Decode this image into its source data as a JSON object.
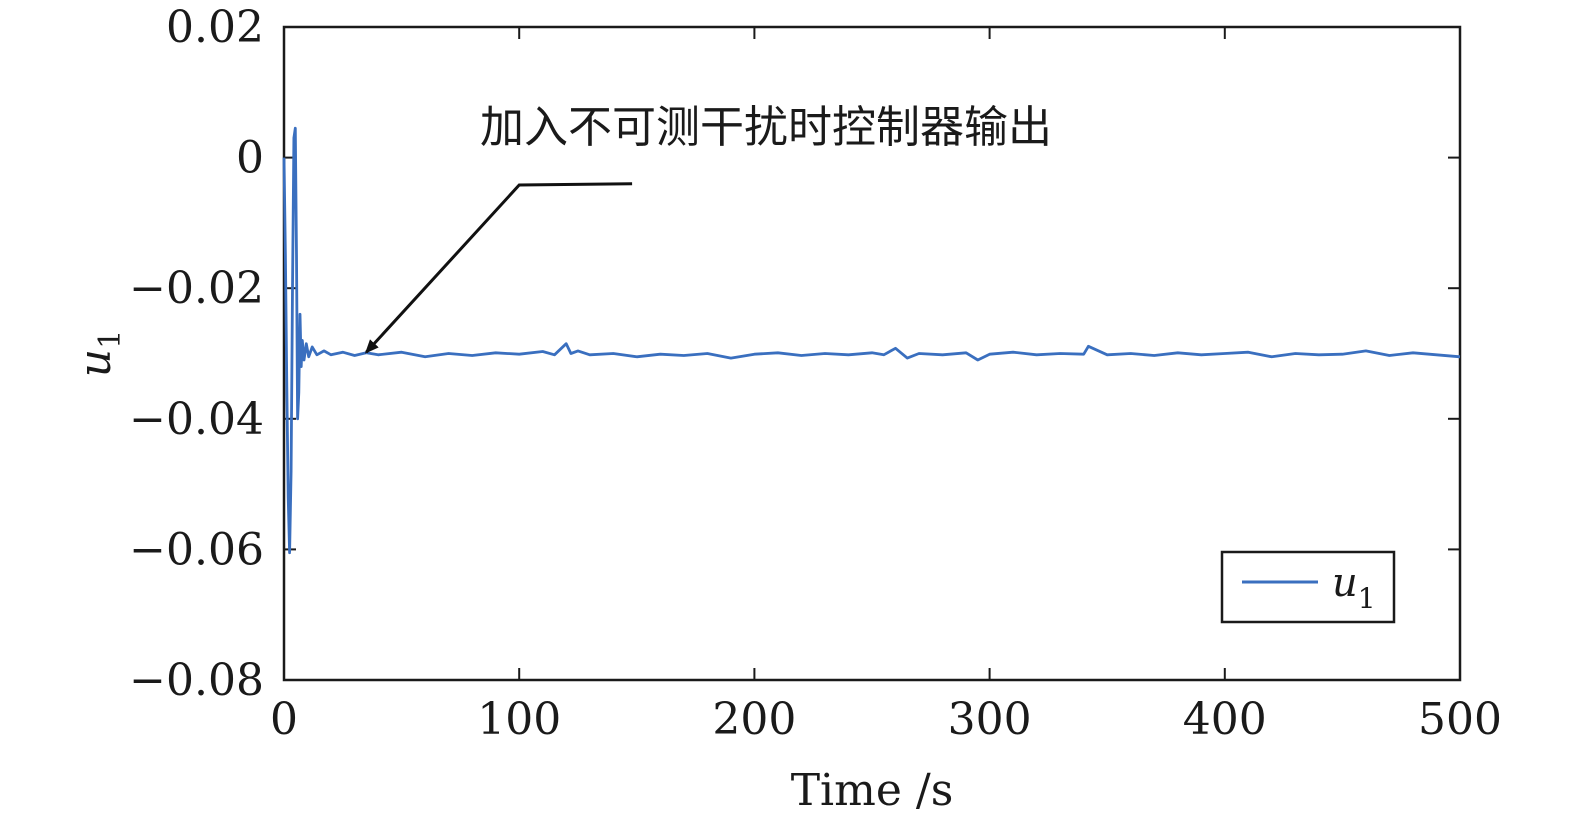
{
  "chart_data": {
    "type": "line",
    "xlabel": "Time /s",
    "ylabel": "u",
    "ylabel_subscript": "1",
    "xlim": [
      0,
      500
    ],
    "ylim": [
      -0.08,
      0.02
    ],
    "xticks": [
      0,
      100,
      200,
      300,
      400,
      500
    ],
    "yticks": [
      0.02,
      0,
      -0.02,
      -0.04,
      -0.06,
      -0.08
    ],
    "xtick_labels": [
      "0",
      "100",
      "200",
      "300",
      "400",
      "500"
    ],
    "ytick_labels": [
      "0.02",
      "0",
      "−0.02",
      "−0.04",
      "−0.06",
      "−0.08"
    ],
    "grid": false,
    "legend_position": "bottom-right",
    "annotation": {
      "text": "加入不可测干扰时控制器输出",
      "arrow_tip": [
        35,
        -0.0298
      ],
      "arrow_elbow": [
        100,
        -0.0042
      ],
      "arrow_tail": [
        148,
        -0.004
      ]
    },
    "series": [
      {
        "name": "u",
        "name_subscript": "1",
        "color": "#3a6fbf",
        "x": [
          0,
          0.6,
          1.2,
          1.8,
          2.4,
          3.0,
          3.6,
          4.2,
          4.8,
          5.3,
          5.8,
          6.3,
          6.8,
          7.3,
          7.8,
          8.5,
          9.5,
          10.5,
          12,
          14,
          17,
          20,
          25,
          30,
          35,
          40,
          50,
          60,
          70,
          80,
          90,
          100,
          110,
          115,
          120,
          122,
          125,
          130,
          140,
          150,
          160,
          170,
          180,
          190,
          200,
          210,
          220,
          230,
          240,
          250,
          255,
          260,
          265,
          270,
          280,
          290,
          295,
          300,
          310,
          320,
          330,
          340,
          342,
          350,
          360,
          370,
          380,
          390,
          400,
          410,
          420,
          430,
          440,
          450,
          460,
          470,
          480,
          490,
          500
        ],
        "y": [
          0.0,
          -0.015,
          -0.035,
          -0.052,
          -0.0605,
          -0.048,
          -0.02,
          0.003,
          0.0045,
          -0.015,
          -0.04,
          -0.036,
          -0.024,
          -0.032,
          -0.028,
          -0.031,
          -0.0285,
          -0.0305,
          -0.029,
          -0.0302,
          -0.0296,
          -0.0302,
          -0.0298,
          -0.0303,
          -0.0299,
          -0.0302,
          -0.0298,
          -0.0305,
          -0.03,
          -0.0303,
          -0.0299,
          -0.0301,
          -0.0297,
          -0.0302,
          -0.0285,
          -0.03,
          -0.0296,
          -0.0302,
          -0.03,
          -0.0305,
          -0.0301,
          -0.0303,
          -0.03,
          -0.0307,
          -0.0301,
          -0.0299,
          -0.0303,
          -0.03,
          -0.0302,
          -0.0299,
          -0.0302,
          -0.0292,
          -0.0307,
          -0.03,
          -0.0302,
          -0.0299,
          -0.031,
          -0.0301,
          -0.0298,
          -0.0302,
          -0.03,
          -0.0301,
          -0.0289,
          -0.0302,
          -0.03,
          -0.0303,
          -0.0299,
          -0.0302,
          -0.03,
          -0.0298,
          -0.0305,
          -0.03,
          -0.0302,
          -0.0301,
          -0.0296,
          -0.0303,
          -0.0299,
          -0.0302,
          -0.0305
        ]
      }
    ]
  }
}
